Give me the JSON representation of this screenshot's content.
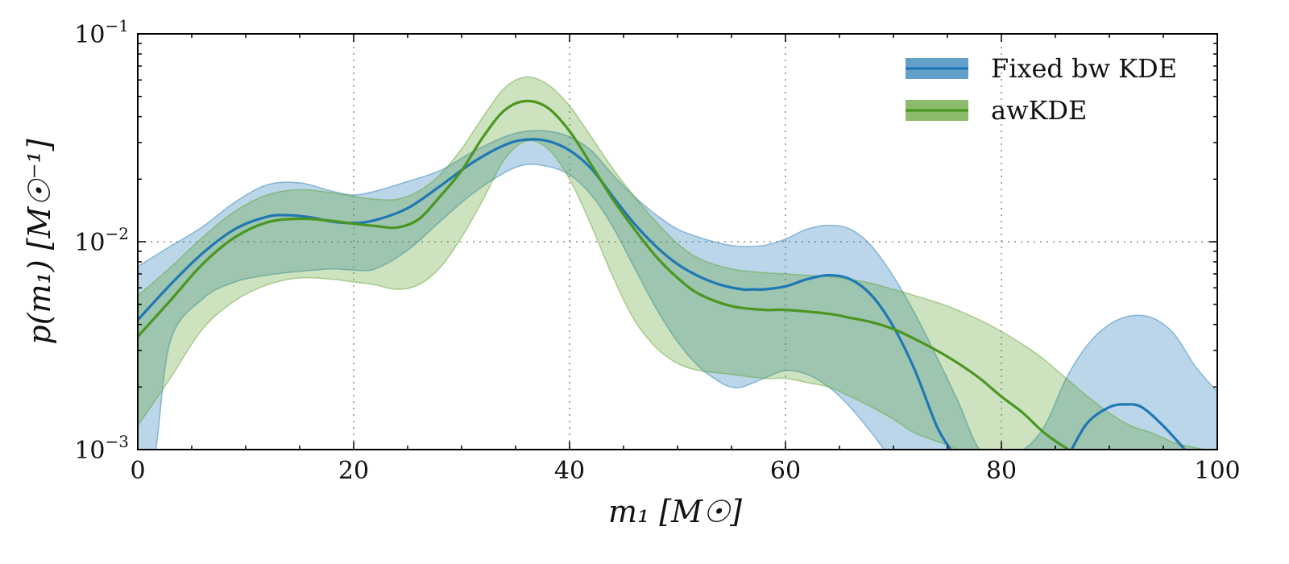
{
  "chart_data": {
    "type": "area",
    "title": "",
    "xlabel": "m₁ [M☉]",
    "ylabel": "p(m₁) [M☉⁻¹]",
    "xlim": [
      0,
      100
    ],
    "ylim": [
      0.001,
      0.1
    ],
    "yscale": "log",
    "grid": true,
    "legend_position": "top-right",
    "x_ticks": [
      0,
      20,
      40,
      60,
      80,
      100
    ],
    "x_tick_labels": [
      "0",
      "20",
      "40",
      "60",
      "80",
      "100"
    ],
    "y_ticks": [
      0.001,
      0.01,
      0.1
    ],
    "y_tick_labels": [
      {
        "base": "10",
        "exp": "−3"
      },
      {
        "base": "10",
        "exp": "−2"
      },
      {
        "base": "10",
        "exp": "−1"
      }
    ],
    "series": [
      {
        "name": "Fixed bw KDE",
        "color": "#1f77b4",
        "band_color": "#1f77b4",
        "band_opacity": 0.3,
        "x": [
          0,
          3,
          6,
          9,
          12,
          14,
          16,
          18,
          20,
          22,
          25,
          28,
          31,
          34,
          36,
          38,
          40,
          42,
          44,
          46,
          48,
          50,
          52,
          54,
          56,
          57,
          58,
          60,
          62,
          64,
          66,
          68,
          70,
          72,
          74,
          75.3
        ],
        "values": [
          0.0042,
          0.0062,
          0.0088,
          0.0115,
          0.0132,
          0.0134,
          0.0131,
          0.0125,
          0.0123,
          0.0127,
          0.0145,
          0.0185,
          0.024,
          0.0292,
          0.031,
          0.0305,
          0.0275,
          0.0225,
          0.0165,
          0.0122,
          0.0095,
          0.0078,
          0.0068,
          0.0062,
          0.0059,
          0.0059,
          0.0059,
          0.0061,
          0.0066,
          0.0069,
          0.0066,
          0.0055,
          0.0039,
          0.0024,
          0.0013,
          0.001
        ],
        "x2": [
          86.5,
          88,
          90,
          91.5,
          93,
          95,
          97
        ],
        "values2": [
          0.001,
          0.00135,
          0.0016,
          0.00165,
          0.0016,
          0.0013,
          0.001
        ],
        "band_x": [
          0,
          1.5,
          3,
          6,
          9,
          12,
          15,
          18,
          20,
          22,
          25,
          28,
          31,
          34,
          36,
          38,
          40,
          42,
          44,
          46,
          48,
          50,
          52,
          54,
          55,
          56,
          58,
          60,
          62,
          64,
          66,
          68,
          70,
          72,
          74,
          76,
          78,
          80,
          82,
          84,
          86,
          88,
          90,
          92,
          94,
          96,
          98,
          100
        ],
        "band_upper": [
          0.0076,
          0.0085,
          0.0095,
          0.0118,
          0.0155,
          0.0188,
          0.0192,
          0.0175,
          0.0168,
          0.0175,
          0.0195,
          0.022,
          0.027,
          0.032,
          0.034,
          0.034,
          0.032,
          0.0275,
          0.021,
          0.0165,
          0.0135,
          0.0115,
          0.0105,
          0.0098,
          0.0096,
          0.0095,
          0.0096,
          0.0103,
          0.0115,
          0.012,
          0.0115,
          0.0095,
          0.0068,
          0.0045,
          0.0028,
          0.0017,
          0.001,
          0.001,
          0.001,
          0.0013,
          0.0022,
          0.0032,
          0.004,
          0.0044,
          0.0043,
          0.0036,
          0.0025,
          0.0019
        ],
        "band_lower": [
          0.0009,
          0.0009,
          0.0033,
          0.0053,
          0.0064,
          0.0069,
          0.0072,
          0.0074,
          0.0073,
          0.0074,
          0.0091,
          0.0125,
          0.017,
          0.0215,
          0.0235,
          0.023,
          0.021,
          0.0168,
          0.0118,
          0.0075,
          0.0048,
          0.0033,
          0.0025,
          0.0021,
          0.002,
          0.002,
          0.0022,
          0.0024,
          0.0023,
          0.002,
          0.0016,
          0.0012,
          0.0009,
          0.0009,
          0.0009,
          0.0009,
          0.0009,
          0.0009,
          0.0009,
          0.0009,
          0.0009,
          0.0009,
          0.0009,
          0.0009,
          0.0009,
          0.0009,
          0.0009,
          0.0009
        ]
      },
      {
        "name": "awKDE",
        "color": "#4a9620",
        "band_color": "#5aa02c",
        "band_opacity": 0.3,
        "x": [
          0,
          3,
          6,
          9,
          12,
          15,
          18,
          20,
          22,
          24,
          26,
          28,
          30,
          32,
          34,
          36,
          38,
          40,
          42,
          44,
          46,
          48,
          50,
          52,
          55,
          58,
          60,
          64,
          66,
          68,
          70,
          72,
          74,
          76,
          78,
          80,
          82,
          84,
          86.2
        ],
        "values": [
          0.0035,
          0.0052,
          0.0078,
          0.0105,
          0.0124,
          0.0129,
          0.0126,
          0.0122,
          0.0119,
          0.0117,
          0.0128,
          0.0165,
          0.022,
          0.032,
          0.043,
          0.0475,
          0.044,
          0.034,
          0.0235,
          0.016,
          0.0115,
          0.0085,
          0.0067,
          0.0056,
          0.0049,
          0.0047,
          0.0047,
          0.0045,
          0.0043,
          0.0041,
          0.0038,
          0.0034,
          0.003,
          0.0026,
          0.0022,
          0.0018,
          0.0015,
          0.0012,
          0.001
        ],
        "band_x": [
          0,
          3,
          6,
          9,
          12,
          15,
          18,
          20,
          22,
          24,
          26,
          28,
          30,
          32,
          34,
          36,
          38,
          40,
          42,
          44,
          46,
          48,
          50,
          52,
          55,
          58,
          60,
          62,
          64,
          66,
          68,
          70,
          72,
          75,
          78,
          80,
          82,
          84,
          86,
          88,
          90,
          92,
          94,
          96,
          98,
          100
        ],
        "band_upper": [
          0.0055,
          0.0075,
          0.0105,
          0.014,
          0.0168,
          0.0178,
          0.0172,
          0.0165,
          0.016,
          0.016,
          0.0175,
          0.021,
          0.028,
          0.04,
          0.055,
          0.062,
          0.057,
          0.045,
          0.032,
          0.0225,
          0.0165,
          0.0125,
          0.0098,
          0.0083,
          0.0074,
          0.0071,
          0.007,
          0.0069,
          0.0068,
          0.0066,
          0.0063,
          0.0059,
          0.0055,
          0.0049,
          0.0042,
          0.0037,
          0.0032,
          0.0027,
          0.0022,
          0.0018,
          0.0015,
          0.0013,
          0.0012,
          0.00108,
          0.00102,
          0.00098
        ],
        "band_lower": [
          0.0013,
          0.0022,
          0.0038,
          0.0052,
          0.0062,
          0.0067,
          0.0066,
          0.0064,
          0.0062,
          0.0059,
          0.0062,
          0.0075,
          0.0105,
          0.016,
          0.025,
          0.0305,
          0.028,
          0.02,
          0.012,
          0.0068,
          0.0042,
          0.0031,
          0.0026,
          0.0024,
          0.0023,
          0.0022,
          0.0022,
          0.0021,
          0.002,
          0.0018,
          0.0016,
          0.0014,
          0.0012,
          0.00105,
          0.0009,
          0.0009,
          0.0009,
          0.0009,
          0.0009,
          0.0009,
          0.0009,
          0.0009,
          0.0009,
          0.0009,
          0.0009,
          0.0009
        ]
      }
    ]
  }
}
